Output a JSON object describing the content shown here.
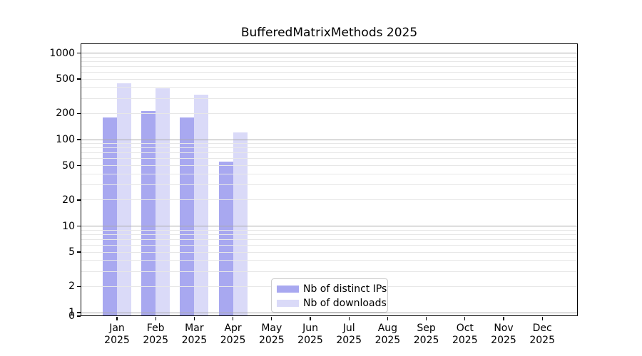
{
  "chart_data": {
    "type": "bar",
    "title": "BufferedMatrixMethods 2025",
    "categories": [
      "Jan 2025",
      "Feb 2025",
      "Mar 2025",
      "Apr 2025",
      "May 2025",
      "Jun 2025",
      "Jul 2025",
      "Aug 2025",
      "Sep 2025",
      "Oct 2025",
      "Nov 2025",
      "Dec 2025"
    ],
    "series": [
      {
        "name": "Nb of distinct IPs",
        "color": "#a8a8f0",
        "values": [
          180,
          215,
          180,
          56,
          null,
          null,
          null,
          null,
          null,
          null,
          null,
          null
        ]
      },
      {
        "name": "Nb of downloads",
        "color": "#dadaf8",
        "values": [
          450,
          390,
          330,
          121,
          null,
          null,
          null,
          null,
          null,
          null,
          null,
          null
        ]
      }
    ],
    "xlabel": "",
    "ylabel": "",
    "yscale": "log above 1, with 0 at the baseline",
    "yticks": [
      0,
      1,
      2,
      5,
      10,
      20,
      50,
      100,
      200,
      500,
      1000
    ],
    "ylim": [
      0,
      1300
    ],
    "grid": "horizontal log gridlines (minor 2-9 per decade), drawn over bars, decades darker",
    "legend_position": "bottom center, inside plot"
  },
  "colors": {
    "background": "#ffffff",
    "spine": "#000000",
    "tick": "#000000",
    "text": "#000000",
    "grid_major": "#a8a8a8",
    "grid_minor": "#e7e7e7",
    "legend_border": "#cccccc"
  }
}
